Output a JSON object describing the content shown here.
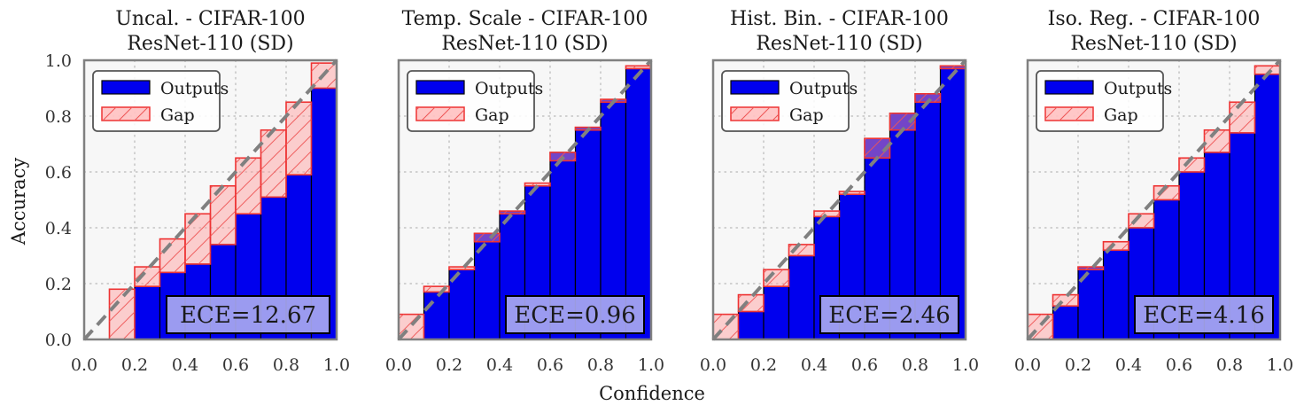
{
  "figure": {
    "xlabel": "Confidence",
    "ylabel": "Accuracy"
  },
  "style": {
    "outputs_fill": "#0000ee",
    "gap_fill": "#ff9999",
    "gap_stroke": "#ee3333",
    "plot_bg": "#f7f7f7",
    "frame": "#808080",
    "diagonal": "#808080",
    "ece_box_fill": "#a8a8f0"
  },
  "chart_data": [
    {
      "type": "bar",
      "title_line1": "Uncal. - CIFAR-100",
      "title_line2": "ResNet-110 (SD)",
      "legend": [
        "Outputs",
        "Gap"
      ],
      "ece_label": "ECE=12.67",
      "xlim": [
        0,
        1
      ],
      "ylim": [
        0,
        1
      ],
      "xticks": [
        "0.0",
        "0.2",
        "0.4",
        "0.6",
        "0.8",
        "1.0"
      ],
      "yticks": [
        "0.0",
        "0.2",
        "0.4",
        "0.6",
        "0.8",
        "1.0"
      ],
      "bin_edges": [
        0,
        0.1,
        0.2,
        0.3,
        0.4,
        0.5,
        0.6,
        0.7,
        0.8,
        0.9,
        1.0
      ],
      "outputs": [
        0,
        0,
        0.19,
        0.24,
        0.27,
        0.34,
        0.45,
        0.51,
        0.59,
        0.9
      ],
      "gap_top": [
        0,
        0.18,
        0.26,
        0.36,
        0.45,
        0.55,
        0.65,
        0.75,
        0.85,
        0.99
      ]
    },
    {
      "type": "bar",
      "title_line1": "Temp. Scale - CIFAR-100",
      "title_line2": "ResNet-110 (SD)",
      "legend": [
        "Outputs",
        "Gap"
      ],
      "ece_label": "ECE=0.96",
      "xlim": [
        0,
        1
      ],
      "ylim": [
        0,
        1
      ],
      "xticks": [
        "0.0",
        "0.2",
        "0.4",
        "0.6",
        "0.8",
        "1.0"
      ],
      "yticks": [],
      "bin_edges": [
        0,
        0.1,
        0.2,
        0.3,
        0.4,
        0.5,
        0.6,
        0.7,
        0.8,
        0.9,
        1.0
      ],
      "outputs": [
        0,
        0.17,
        0.25,
        0.38,
        0.46,
        0.55,
        0.67,
        0.76,
        0.86,
        0.97
      ],
      "gap_top": [
        0.09,
        0.19,
        0.26,
        0.35,
        0.45,
        0.56,
        0.64,
        0.75,
        0.85,
        0.98
      ]
    },
    {
      "type": "bar",
      "title_line1": "Hist. Bin. - CIFAR-100",
      "title_line2": "ResNet-110 (SD)",
      "legend": [
        "Outputs",
        "Gap"
      ],
      "ece_label": "ECE=2.46",
      "xlim": [
        0,
        1
      ],
      "ylim": [
        0,
        1
      ],
      "xticks": [
        "0.0",
        "0.2",
        "0.4",
        "0.6",
        "0.8",
        "1.0"
      ],
      "yticks": [],
      "bin_edges": [
        0,
        0.1,
        0.2,
        0.3,
        0.4,
        0.5,
        0.6,
        0.7,
        0.8,
        0.9,
        1.0
      ],
      "outputs": [
        0,
        0.1,
        0.19,
        0.3,
        0.44,
        0.52,
        0.72,
        0.81,
        0.88,
        0.98
      ],
      "gap_top": [
        0.09,
        0.16,
        0.25,
        0.34,
        0.46,
        0.53,
        0.65,
        0.75,
        0.85,
        0.97
      ]
    },
    {
      "type": "bar",
      "title_line1": "Iso. Reg. - CIFAR-100",
      "title_line2": "ResNet-110 (SD)",
      "legend": [
        "Outputs",
        "Gap"
      ],
      "ece_label": "ECE=4.16",
      "xlim": [
        0,
        1
      ],
      "ylim": [
        0,
        1
      ],
      "xticks": [
        "0.0",
        "0.2",
        "0.4",
        "0.6",
        "0.8",
        "1.0"
      ],
      "yticks": [],
      "bin_edges": [
        0,
        0.1,
        0.2,
        0.3,
        0.4,
        0.5,
        0.6,
        0.7,
        0.8,
        0.9,
        1.0
      ],
      "outputs": [
        0,
        0.12,
        0.26,
        0.32,
        0.4,
        0.5,
        0.6,
        0.67,
        0.74,
        0.95
      ],
      "gap_top": [
        0.09,
        0.16,
        0.25,
        0.35,
        0.45,
        0.55,
        0.65,
        0.75,
        0.85,
        0.98
      ]
    }
  ]
}
